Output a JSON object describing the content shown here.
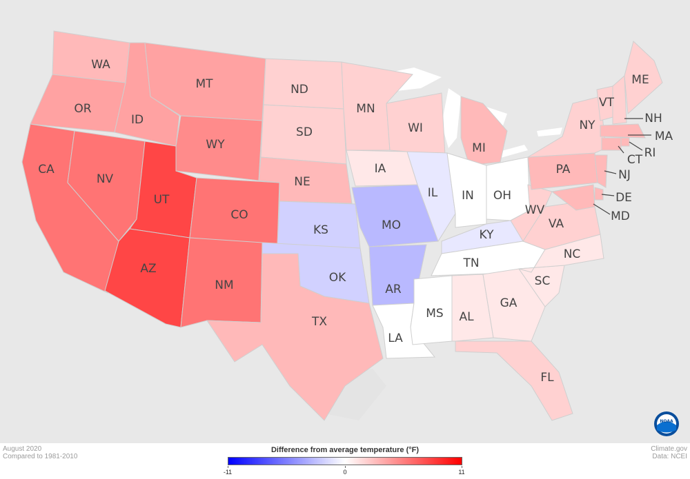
{
  "states": [
    {
      "abbr": "WA",
      "anomaly": 3
    },
    {
      "abbr": "OR",
      "anomaly": 4
    },
    {
      "abbr": "CA",
      "anomaly": 6
    },
    {
      "abbr": "ID",
      "anomaly": 4
    },
    {
      "abbr": "NV",
      "anomaly": 6
    },
    {
      "abbr": "UT",
      "anomaly": 8
    },
    {
      "abbr": "AZ",
      "anomaly": 8
    },
    {
      "abbr": "MT",
      "anomaly": 4
    },
    {
      "abbr": "WY",
      "anomaly": 5
    },
    {
      "abbr": "CO",
      "anomaly": 6
    },
    {
      "abbr": "NM",
      "anomaly": 6
    },
    {
      "abbr": "ND",
      "anomaly": 2
    },
    {
      "abbr": "SD",
      "anomaly": 2
    },
    {
      "abbr": "NE",
      "anomaly": 3
    },
    {
      "abbr": "KS",
      "anomaly": -2
    },
    {
      "abbr": "OK",
      "anomaly": -2
    },
    {
      "abbr": "TX",
      "anomaly": 3
    },
    {
      "abbr": "MN",
      "anomaly": 2
    },
    {
      "abbr": "IA",
      "anomaly": 1
    },
    {
      "abbr": "MO",
      "anomaly": -3
    },
    {
      "abbr": "AR",
      "anomaly": -3
    },
    {
      "abbr": "LA",
      "anomaly": 0
    },
    {
      "abbr": "WI",
      "anomaly": 2
    },
    {
      "abbr": "IL",
      "anomaly": -1
    },
    {
      "abbr": "MS",
      "anomaly": 0
    },
    {
      "abbr": "MI",
      "anomaly": 3
    },
    {
      "abbr": "IN",
      "anomaly": 0
    },
    {
      "abbr": "OH",
      "anomaly": 0
    },
    {
      "abbr": "KY",
      "anomaly": -1
    },
    {
      "abbr": "TN",
      "anomaly": 0
    },
    {
      "abbr": "AL",
      "anomaly": 1
    },
    {
      "abbr": "GA",
      "anomaly": 1
    },
    {
      "abbr": "FL",
      "anomaly": 2
    },
    {
      "abbr": "SC",
      "anomaly": 1
    },
    {
      "abbr": "NC",
      "anomaly": 1
    },
    {
      "abbr": "VA",
      "anomaly": 2
    },
    {
      "abbr": "WV",
      "anomaly": 2
    },
    {
      "abbr": "PA",
      "anomaly": 3
    },
    {
      "abbr": "NY",
      "anomaly": 2
    },
    {
      "abbr": "VT",
      "anomaly": 2
    },
    {
      "abbr": "NH",
      "anomaly": 2
    },
    {
      "abbr": "ME",
      "anomaly": 2
    },
    {
      "abbr": "MA",
      "anomaly": 3
    },
    {
      "abbr": "RI",
      "anomaly": 3
    },
    {
      "abbr": "CT",
      "anomaly": 3
    },
    {
      "abbr": "NJ",
      "anomaly": 3
    },
    {
      "abbr": "DE",
      "anomaly": 3
    },
    {
      "abbr": "MD",
      "anomaly": 3
    }
  ],
  "footer": {
    "period": "August 2020",
    "baseline": "Compared to 1981-2010",
    "source_site": "Climate.gov",
    "source_data": "Data: NCEI"
  },
  "legend": {
    "title": "Difference from average temperature (°F)",
    "min_label": "-11",
    "mid_label": "0",
    "max_label": "11",
    "min": -11,
    "max": 11,
    "cold_color": "#0000ff",
    "neutral_color": "#ffffff",
    "warm_color": "#ff0000"
  },
  "logo": {
    "text": "NOAA"
  }
}
